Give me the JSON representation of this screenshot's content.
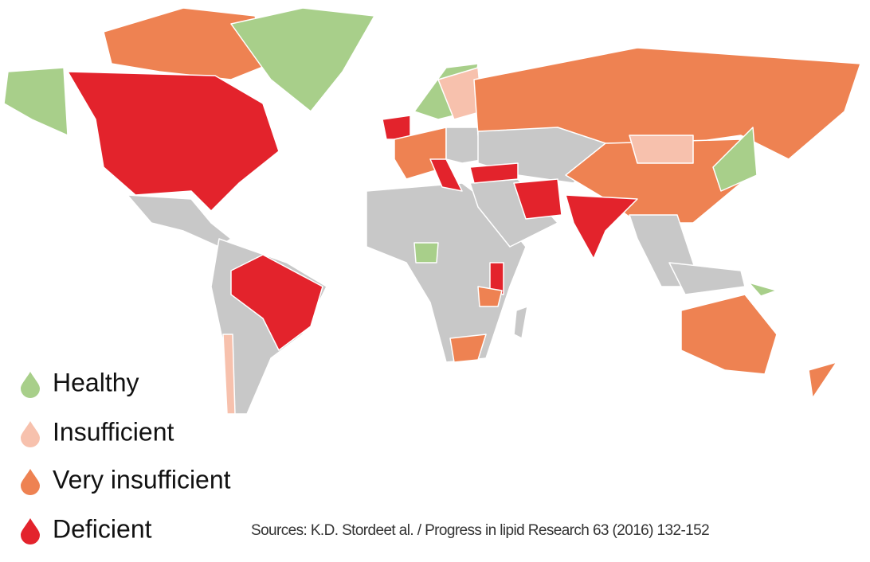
{
  "legend": [
    {
      "label": "Healthy",
      "color": "#a8cf8a"
    },
    {
      "label": "Insufficient",
      "color": "#f7c1ad"
    },
    {
      "label": "Very insufficient",
      "color": "#ee8252"
    },
    {
      "label": "Deficient",
      "color": "#e3232c"
    }
  ],
  "source": "Sources: K.D. Stordeet al. / Progress in lipid Research 63 (2016) 132-152"
}
